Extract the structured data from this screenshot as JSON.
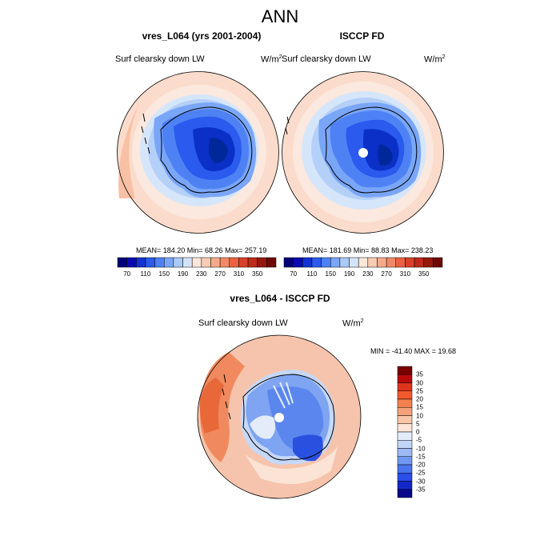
{
  "title": "ANN",
  "panels": [
    {
      "title": "vres_L064 (yrs 2001-2004)",
      "variable": "Surf clearsky down LW",
      "units": "W/m",
      "units_sup": "2",
      "stats": "MEAN= 184.20  Min=  68.26  Max= 257.19"
    },
    {
      "title": "ISCCP FD",
      "variable": "Surf clearsky down LW",
      "units": "W/m",
      "units_sup": "2",
      "stats": "MEAN= 181.69  Min=  88.83  Max= 238.23"
    },
    {
      "title": "vres_L064 - ISCCP FD",
      "variable": "Surf clearsky down LW",
      "units": "W/m",
      "units_sup": "2",
      "stats": "MIN = -41.40 MAX =  19.68"
    }
  ],
  "colorbar_top": {
    "labels": [
      "70",
      "110",
      "150",
      "190",
      "230",
      "270",
      "310",
      "350"
    ],
    "colors": [
      "#00007a",
      "#0a0ab0",
      "#1432d2",
      "#2a5aee",
      "#4e82f4",
      "#7aa6f8",
      "#aacaf8",
      "#d4e4f8",
      "#fbe6da",
      "#f8cbb3",
      "#f5ab8a",
      "#f28a66",
      "#ea6242",
      "#d8402a",
      "#bc2a1a",
      "#96180e",
      "#6e0a06"
    ]
  },
  "colorbar_diff": {
    "labels": [
      "35",
      "30",
      "25",
      "20",
      "15",
      "10",
      "5",
      "0",
      "-5",
      "-10",
      "-15",
      "-20",
      "-25",
      "-30",
      "-35"
    ],
    "colors": [
      "#7a0000",
      "#ba0a0a",
      "#e0341a",
      "#f25a2e",
      "#f5804f",
      "#f5a27a",
      "#fac6a8",
      "#fde6d8",
      "#e4ecfa",
      "#c2d6f8",
      "#9cbaf6",
      "#7098f2",
      "#4a74ee",
      "#2a4ee8",
      "#1428c8",
      "#080888"
    ]
  },
  "map_colors": {
    "outer": "#fbdccc",
    "mid": "#fbe8de",
    "ocean_pale": "#d6e6fa",
    "ocean_light": "#b4d0f8",
    "coast": "#7aa6f8",
    "ice_edge": "#4e82f4",
    "ice": "#2a5aee",
    "ice_deep": "#0a30c8",
    "ice_core": "#00289a",
    "diff_bg": "#f6c4ac",
    "diff_warm": "#f08a5e",
    "diff_warm_strong": "#e8683a",
    "diff_cool_light": "#c6d8f8",
    "diff_cool": "#7ea4f2",
    "diff_cool_mid": "#5a86ee",
    "diff_cool_deep": "#2a50e0"
  }
}
